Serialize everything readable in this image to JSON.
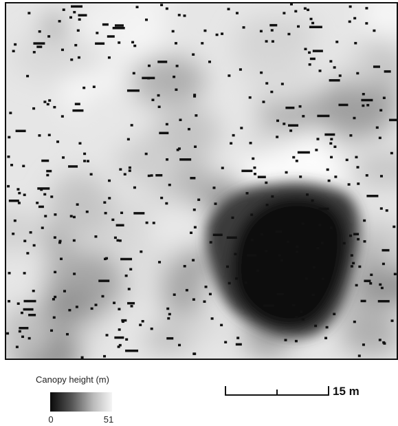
{
  "legend": {
    "title": "Canopy height (m)",
    "min_label": "0",
    "max_label": "51"
  },
  "scale_bar": {
    "label": "15 m"
  }
}
